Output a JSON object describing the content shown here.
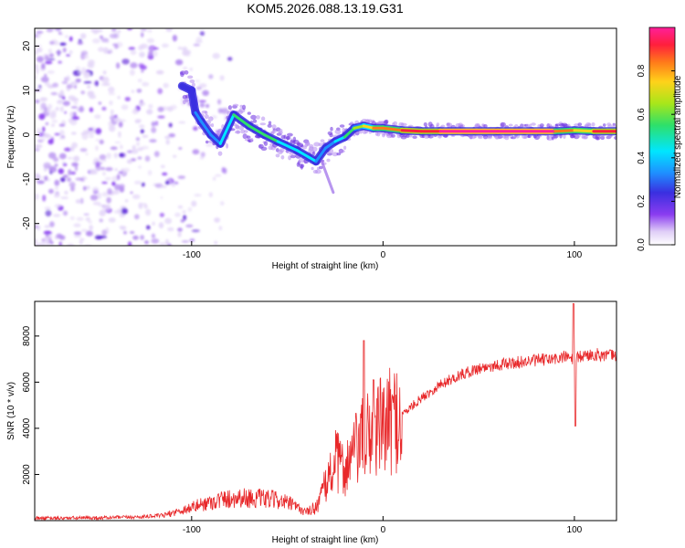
{
  "title": "KOM5.2026.088.13.19.G31",
  "colors": {
    "axis": "#000000",
    "trace": "#e8282a",
    "background": "#ffffff",
    "colormap": [
      "#ffffff",
      "#d9c4f5",
      "#8a3cf0",
      "#3a2fe0",
      "#1f8fff",
      "#00e6ff",
      "#2ee06a",
      "#a8e61a",
      "#ffd21a",
      "#ff7a1a",
      "#ff1f3c",
      "#ff1f9a"
    ]
  },
  "chart_data": [
    {
      "type": "heatmap",
      "name": "spectrogram",
      "xlabel": "Height of straight line (km)",
      "ylabel": "Frequency (Hz)",
      "xlim": [
        -182,
        122
      ],
      "ylim": [
        -25,
        24
      ],
      "xticks": [
        -100,
        0,
        100
      ],
      "yticks": [
        -20,
        -10,
        0,
        10,
        20
      ],
      "grid": false,
      "colorbar": {
        "label": "Normalized spectral amplitude",
        "range": [
          0.0,
          1.0
        ],
        "ticks": [
          "0.0",
          "0.2",
          "0.4",
          "0.6",
          "0.8"
        ]
      },
      "noise_region_x": [
        -182,
        -105
      ],
      "signal_path": [
        {
          "x": -105,
          "f": 11,
          "a": 0.25
        },
        {
          "x": -100,
          "f": 10,
          "a": 0.3
        },
        {
          "x": -98,
          "f": 5,
          "a": 0.3
        },
        {
          "x": -95,
          "f": 3,
          "a": 0.4
        },
        {
          "x": -90,
          "f": 0,
          "a": 0.35
        },
        {
          "x": -85,
          "f": -2,
          "a": 0.4
        },
        {
          "x": -78,
          "f": 4.5,
          "a": 0.5
        },
        {
          "x": -70,
          "f": 2,
          "a": 0.5
        },
        {
          "x": -62,
          "f": 0,
          "a": 0.55
        },
        {
          "x": -55,
          "f": -1.5,
          "a": 0.5
        },
        {
          "x": -45,
          "f": -3.5,
          "a": 0.45
        },
        {
          "x": -35,
          "f": -6,
          "a": 0.4
        },
        {
          "x": -30,
          "f": -3,
          "a": 0.35
        },
        {
          "x": -25,
          "f": -1.5,
          "a": 0.45
        },
        {
          "x": -20,
          "f": -0.5,
          "a": 0.5
        },
        {
          "x": -15,
          "f": 1.5,
          "a": 0.6
        },
        {
          "x": -10,
          "f": 2,
          "a": 0.65
        },
        {
          "x": -5,
          "f": 1.5,
          "a": 0.75
        },
        {
          "x": 0,
          "f": 1.5,
          "a": 0.8
        },
        {
          "x": 10,
          "f": 1.0,
          "a": 0.85
        },
        {
          "x": 20,
          "f": 0.8,
          "a": 0.9
        },
        {
          "x": 30,
          "f": 0.8,
          "a": 0.95
        },
        {
          "x": 60,
          "f": 0.8,
          "a": 1.0
        },
        {
          "x": 90,
          "f": 0.8,
          "a": 1.0
        },
        {
          "x": 100,
          "f": 1.0,
          "a": 0.6
        },
        {
          "x": 110,
          "f": 0.8,
          "a": 0.9
        },
        {
          "x": 122,
          "f": 0.8,
          "a": 0.95
        }
      ]
    },
    {
      "type": "line",
      "name": "snr",
      "xlabel": "Height of straight line (km)",
      "ylabel": "SNR (10 * v/v)",
      "xlim": [
        -182,
        122
      ],
      "ylim": [
        0,
        9500
      ],
      "xticks": [
        -100,
        0,
        100
      ],
      "yticks": [
        2000,
        4000,
        6000,
        8000
      ],
      "grid": false,
      "series": [
        {
          "name": "SNR",
          "x": [
            -182,
            -150,
            -130,
            -115,
            -105,
            -95,
            -85,
            -75,
            -65,
            -55,
            -48,
            -40,
            -35,
            -30,
            -25,
            -20,
            -15,
            -10,
            -5,
            0,
            10,
            20,
            30,
            40,
            50,
            60,
            70,
            80,
            90,
            95,
            100,
            105,
            110,
            122
          ],
          "y": [
            100,
            120,
            150,
            220,
            450,
            700,
            900,
            1000,
            950,
            900,
            700,
            350,
            600,
            1500,
            2600,
            2200,
            3000,
            3500,
            4000,
            4100,
            4600,
            5300,
            5900,
            6300,
            6600,
            6750,
            6850,
            6950,
            7000,
            7100,
            7000,
            7150,
            7200,
            7150
          ]
        }
      ],
      "spikes": [
        {
          "x": -10,
          "y": 7800
        },
        {
          "x": -5,
          "y": 6100
        },
        {
          "x": 99.5,
          "y": 9400
        },
        {
          "x": 100.5,
          "y": 4100
        }
      ]
    }
  ]
}
